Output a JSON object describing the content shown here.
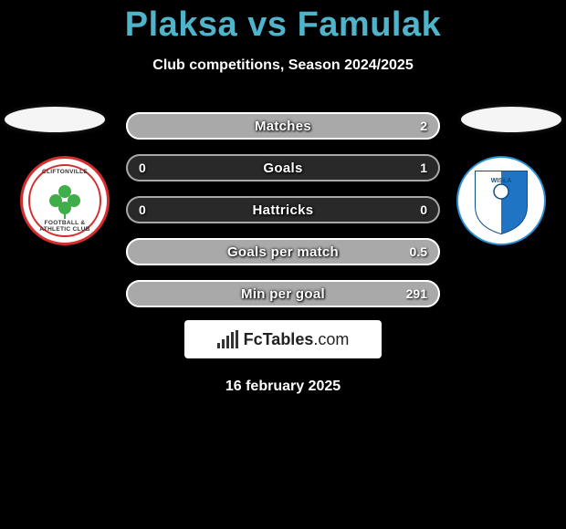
{
  "header": {
    "title": "Plaksa vs Famulak",
    "subtitle": "Club competitions, Season 2024/2025"
  },
  "left_club": {
    "name": "Cliftonville",
    "badge_text_top": "CLIFTONVILLE",
    "badge_text_bottom": "FOOTBALL & ATHLETIC CLUB",
    "badge_bg": "#ffffff",
    "badge_ring": "#d62e2e",
    "clover_color": "#3fae4a"
  },
  "right_club": {
    "name": "Wisla Plock",
    "badge_bg": "#ffffff",
    "badge_border": "#2a8fd4",
    "shield_blue": "#1f74c4",
    "shield_white": "#ffffff"
  },
  "stats": {
    "rows": [
      {
        "label": "Matches",
        "left": "",
        "right": "2",
        "right_fill_pct": 100
      },
      {
        "label": "Goals",
        "left": "0",
        "right": "1",
        "right_fill_pct": 0
      },
      {
        "label": "Hattricks",
        "left": "0",
        "right": "0",
        "right_fill_pct": 0
      },
      {
        "label": "Goals per match",
        "left": "",
        "right": "0.5",
        "right_fill_pct": 100
      },
      {
        "label": "Min per goal",
        "left": "",
        "right": "291",
        "right_fill_pct": 100
      }
    ],
    "row_border_color": "rgba(255,255,255,0.6)",
    "row_bg_color": "rgba(188,188,188,0.22)",
    "fill_color": "#a9a9a9",
    "text_color": "#ffffff"
  },
  "footer": {
    "brand_name": "FcTables",
    "brand_domain": ".com",
    "date": "16 february 2025"
  },
  "colors": {
    "background": "#000000",
    "title": "#4fb4c9",
    "text": "#ffffff"
  }
}
